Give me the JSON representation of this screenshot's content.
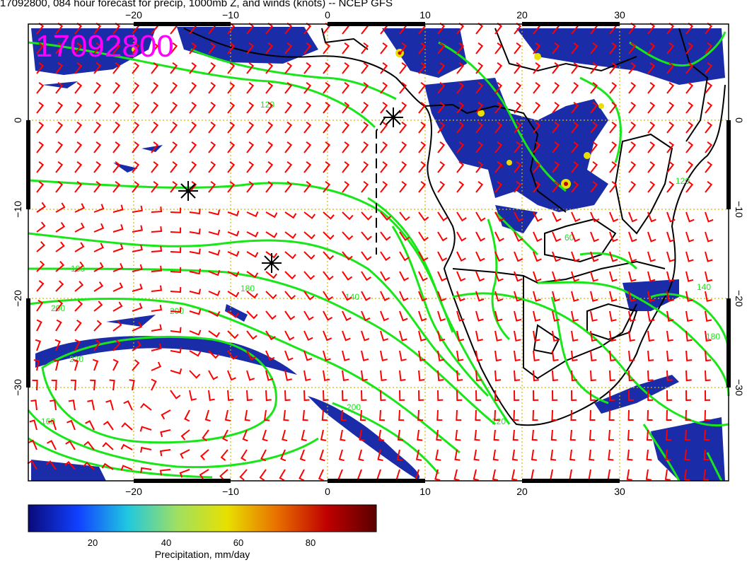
{
  "title": "17092800, 084 hour forecast for precip, 1000mb Z, and winds (knots) -- NCEP GFS",
  "stamp": "17092800",
  "axes": {
    "lon_ticks": [
      "−20",
      "−10",
      "0",
      "10",
      "20",
      "30"
    ],
    "lat_ticks": [
      "0",
      "−10",
      "−20",
      "−30"
    ]
  },
  "contour_labels": [
    "120",
    "180",
    "200",
    "220",
    "200",
    "180",
    "140",
    "120",
    "60",
    "120",
    "140",
    "180",
    "200",
    "160"
  ],
  "colorbar": {
    "ticks": [
      "20",
      "40",
      "60",
      "80"
    ],
    "label": "Precipitation, mm/day",
    "colors": [
      "#0a0a7a",
      "#1040ff",
      "#20c8e0",
      "#a0e060",
      "#e8e000",
      "#e87000",
      "#c00000",
      "#5a0000"
    ]
  },
  "colors": {
    "contour": "#19e619",
    "wind": "#ff0000",
    "grid": "#d4b800",
    "stamp": "#ff00ff",
    "precip": "#1a2ca8"
  }
}
